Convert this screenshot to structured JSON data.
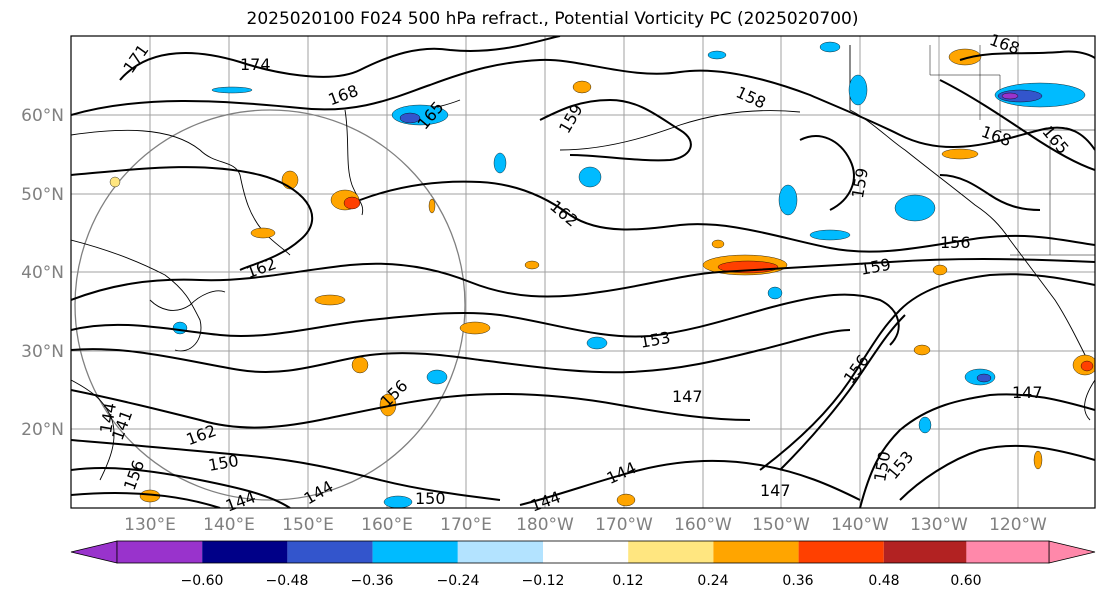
{
  "title": "2025020100 F024 500 hPa refract., Potential Vorticity PC (2025020700)",
  "map": {
    "lat_labels": [
      "60°N",
      "50°N",
      "40°N",
      "30°N",
      "20°N"
    ],
    "lon_labels": [
      "130°E",
      "140°E",
      "150°E",
      "160°E",
      "170°E",
      "180°W",
      "170°W",
      "160°W",
      "150°W",
      "140°W",
      "130°W",
      "120°W"
    ],
    "contour_labels": [
      "171",
      "174",
      "168",
      "165",
      "159",
      "158",
      "168",
      "168",
      "165",
      "159",
      "162",
      "162",
      "156",
      "159",
      "153",
      "156",
      "147",
      "147",
      "144",
      "147",
      "150",
      "153",
      "144",
      "150",
      "144",
      "156",
      "162",
      "150",
      "144",
      "141",
      "156",
      "144"
    ]
  },
  "colorbar": {
    "ticks": [
      "−0.60",
      "−0.48",
      "−0.36",
      "−0.24",
      "−0.12",
      "0.12",
      "0.24",
      "0.36",
      "0.48",
      "0.60"
    ],
    "colors": [
      "#9933cc",
      "#000088",
      "#3355cc",
      "#00bbff",
      "#b3e3ff",
      "#ffffff",
      "#ffe680",
      "#ffa500",
      "#ff4000",
      "#b22222",
      "#ff88aa"
    ]
  }
}
